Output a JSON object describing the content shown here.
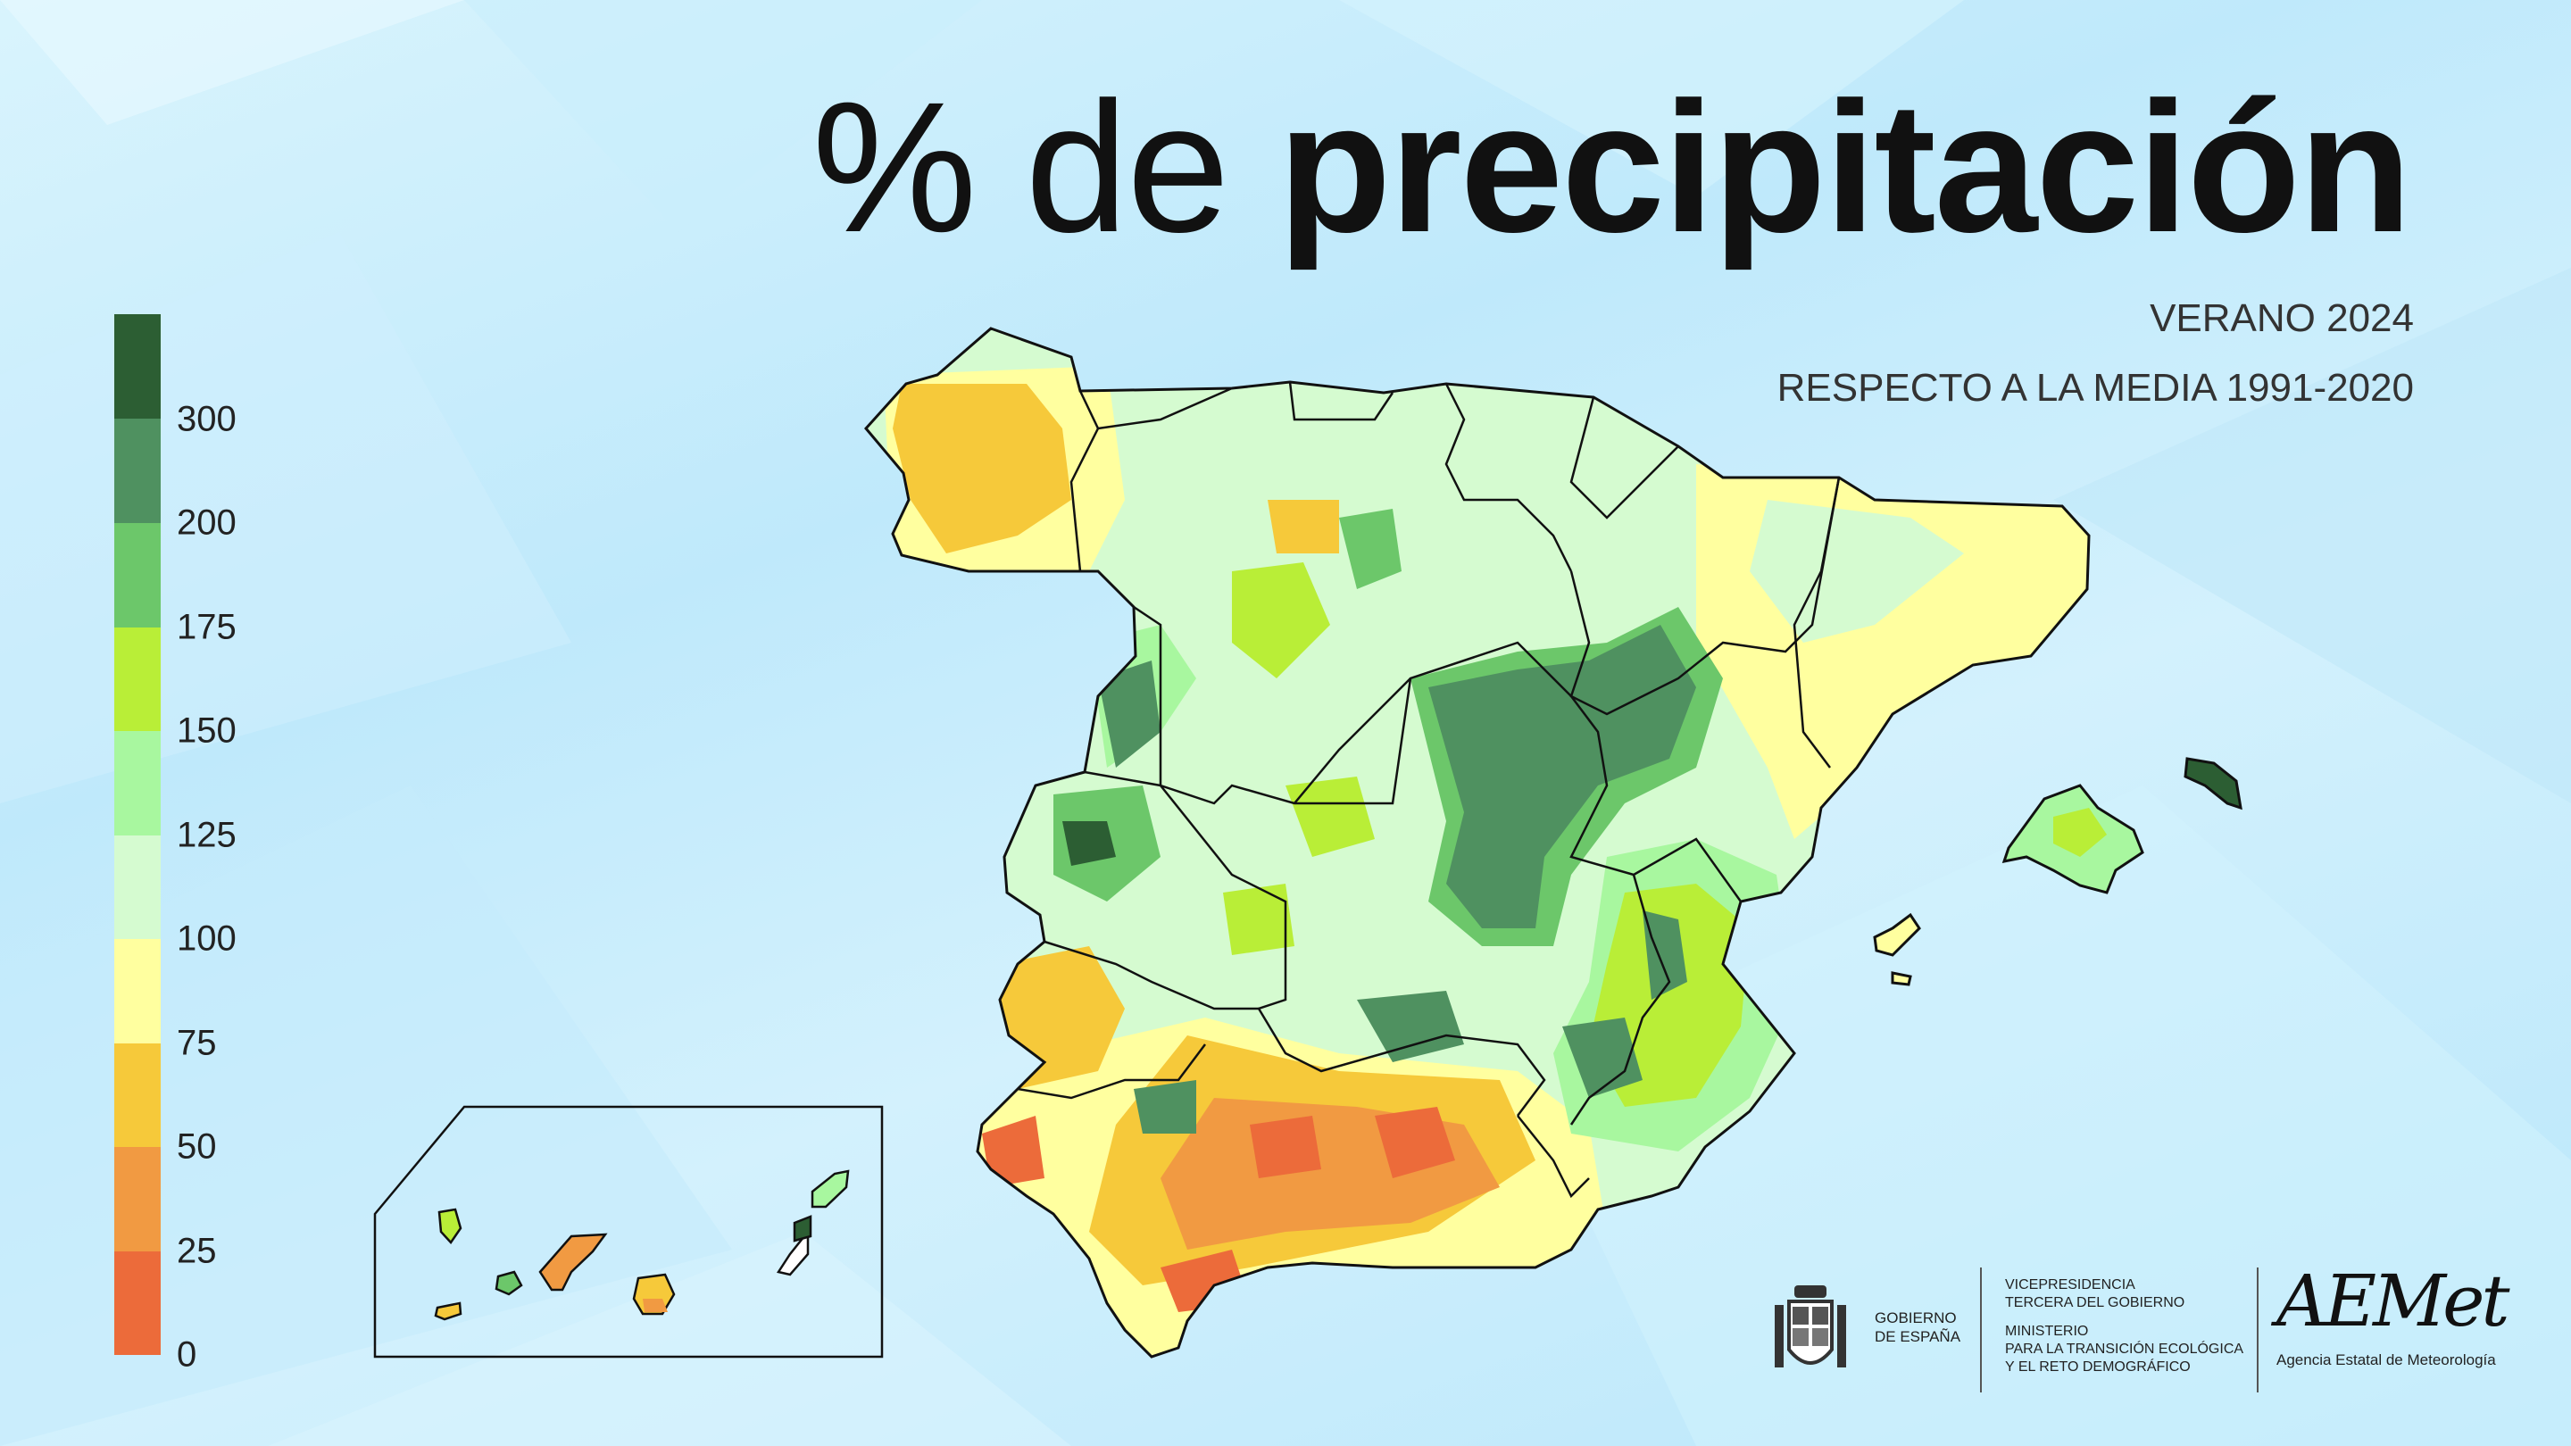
{
  "title": {
    "prefix": "% de",
    "main": "precipitación"
  },
  "subtitle": {
    "line1": "VERANO 2024",
    "line2": "RESPECTO A LA MEDIA 1991-2020"
  },
  "legend": {
    "unit": "%",
    "labels": [
      "300",
      "200",
      "175",
      "150",
      "125",
      "100",
      "75",
      "50",
      "25",
      "0"
    ],
    "colors": [
      "#2c5e33",
      "#4f9160",
      "#6cc76a",
      "#b9ee37",
      "#a8f79f",
      "#d5fbd0",
      "#ffff9f",
      "#f6c93a",
      "#f19a42",
      "#ec6b3a"
    ]
  },
  "map": {
    "regions": [
      "Península",
      "Islas Baleares",
      "Islas Canarias"
    ],
    "dominant_classes": {
      "northwest_galicia": "50-75",
      "central_east_iberian": "200-300",
      "andalusia_south": "0-75",
      "ebro_catalonia": "75-125"
    }
  },
  "footer": {
    "gob_line1": "GOBIERNO",
    "gob_line2": "DE ESPAÑA",
    "vice_line1": "VICEPRESIDENCIA",
    "vice_line2": "TERCERA DEL GOBIERNO",
    "min_line1": "MINISTERIO",
    "min_line2": "PARA LA TRANSICIÓN ECOLÓGICA",
    "min_line3": "Y EL RETO DEMOGRÁFICO",
    "aemet_logo": "AEMet",
    "aemet_name": "Agencia Estatal de Meteorología"
  }
}
